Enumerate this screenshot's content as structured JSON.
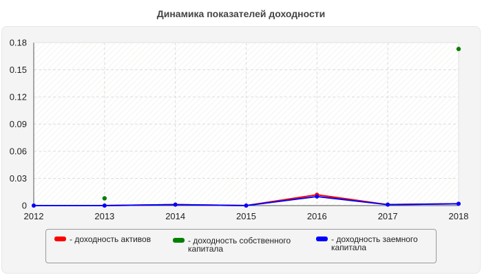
{
  "chart_data": {
    "type": "line",
    "title": "Динамика показателей доходности",
    "categories": [
      "2012",
      "2013",
      "2014",
      "2015",
      "2016",
      "2017",
      "2018"
    ],
    "y_ticks": [
      "0",
      "0.03",
      "0.06",
      "0.09",
      "0.12",
      "0.15",
      "0.18"
    ],
    "ylim": [
      0,
      0.18
    ],
    "grid": true,
    "legend_position": "bottom",
    "series": [
      {
        "name": "- доходность активов",
        "color": "#ff0000",
        "style": "line",
        "values": [
          0.0,
          0.0,
          0.001,
          0.0,
          0.012,
          0.001,
          0.002
        ]
      },
      {
        "name": "- доходность собственного капитала",
        "color": "#008000",
        "style": "markers",
        "values": [
          null,
          0.008,
          null,
          null,
          null,
          null,
          0.173
        ]
      },
      {
        "name": "- доходность заемного капитала",
        "color": "#0000ff",
        "style": "line",
        "values": [
          0.0,
          0.0,
          0.001,
          0.0,
          0.01,
          0.001,
          0.002
        ]
      }
    ]
  }
}
